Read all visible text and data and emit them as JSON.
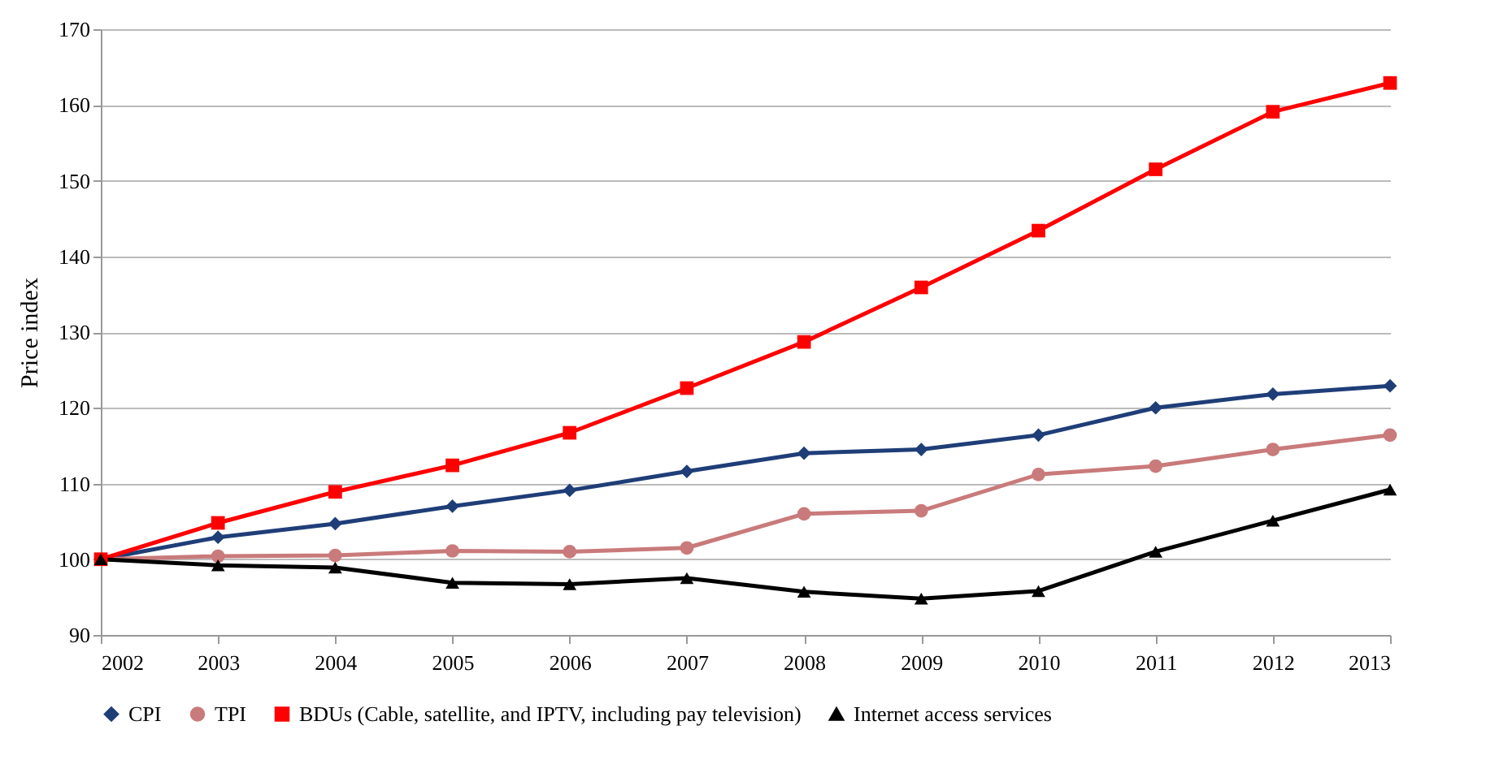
{
  "chart_data": {
    "type": "line",
    "ylabel": "Price index",
    "categories": [
      "2002",
      "2003",
      "2004",
      "2005",
      "2006",
      "2007",
      "2008",
      "2009",
      "2010",
      "2011",
      "2012",
      "2013"
    ],
    "ylim": [
      90,
      170
    ],
    "yticks": [
      90,
      100,
      110,
      120,
      130,
      140,
      150,
      160,
      170
    ],
    "grid": "y",
    "legend": "bottom",
    "line_style": "solid",
    "series": [
      {
        "name": "CPI",
        "color": "#1f3e78",
        "marker": "diamond",
        "values": [
          100,
          102.9,
          104.7,
          107,
          109.1,
          111.6,
          114,
          114.5,
          116.4,
          120,
          121.8,
          122.9
        ]
      },
      {
        "name": "TPI",
        "color": "#c97a7a",
        "marker": "circle",
        "values": [
          100,
          100.4,
          100.5,
          101.1,
          101,
          101.5,
          106,
          106.4,
          111.2,
          112.3,
          114.5,
          116.4
        ]
      },
      {
        "name": "BDUs (Cable, satellite, and IPTV, including pay television)",
        "color": "#ff0000",
        "marker": "square",
        "values": [
          100,
          104.8,
          108.9,
          112.4,
          116.7,
          122.6,
          128.7,
          135.9,
          143.4,
          151.5,
          159.1,
          162.9
        ]
      },
      {
        "name": "Internet access services",
        "color": "#000000",
        "marker": "triangle",
        "values": [
          100,
          99.2,
          98.9,
          96.9,
          96.7,
          97.5,
          95.7,
          94.8,
          95.8,
          101,
          105.1,
          109.2
        ]
      }
    ]
  }
}
